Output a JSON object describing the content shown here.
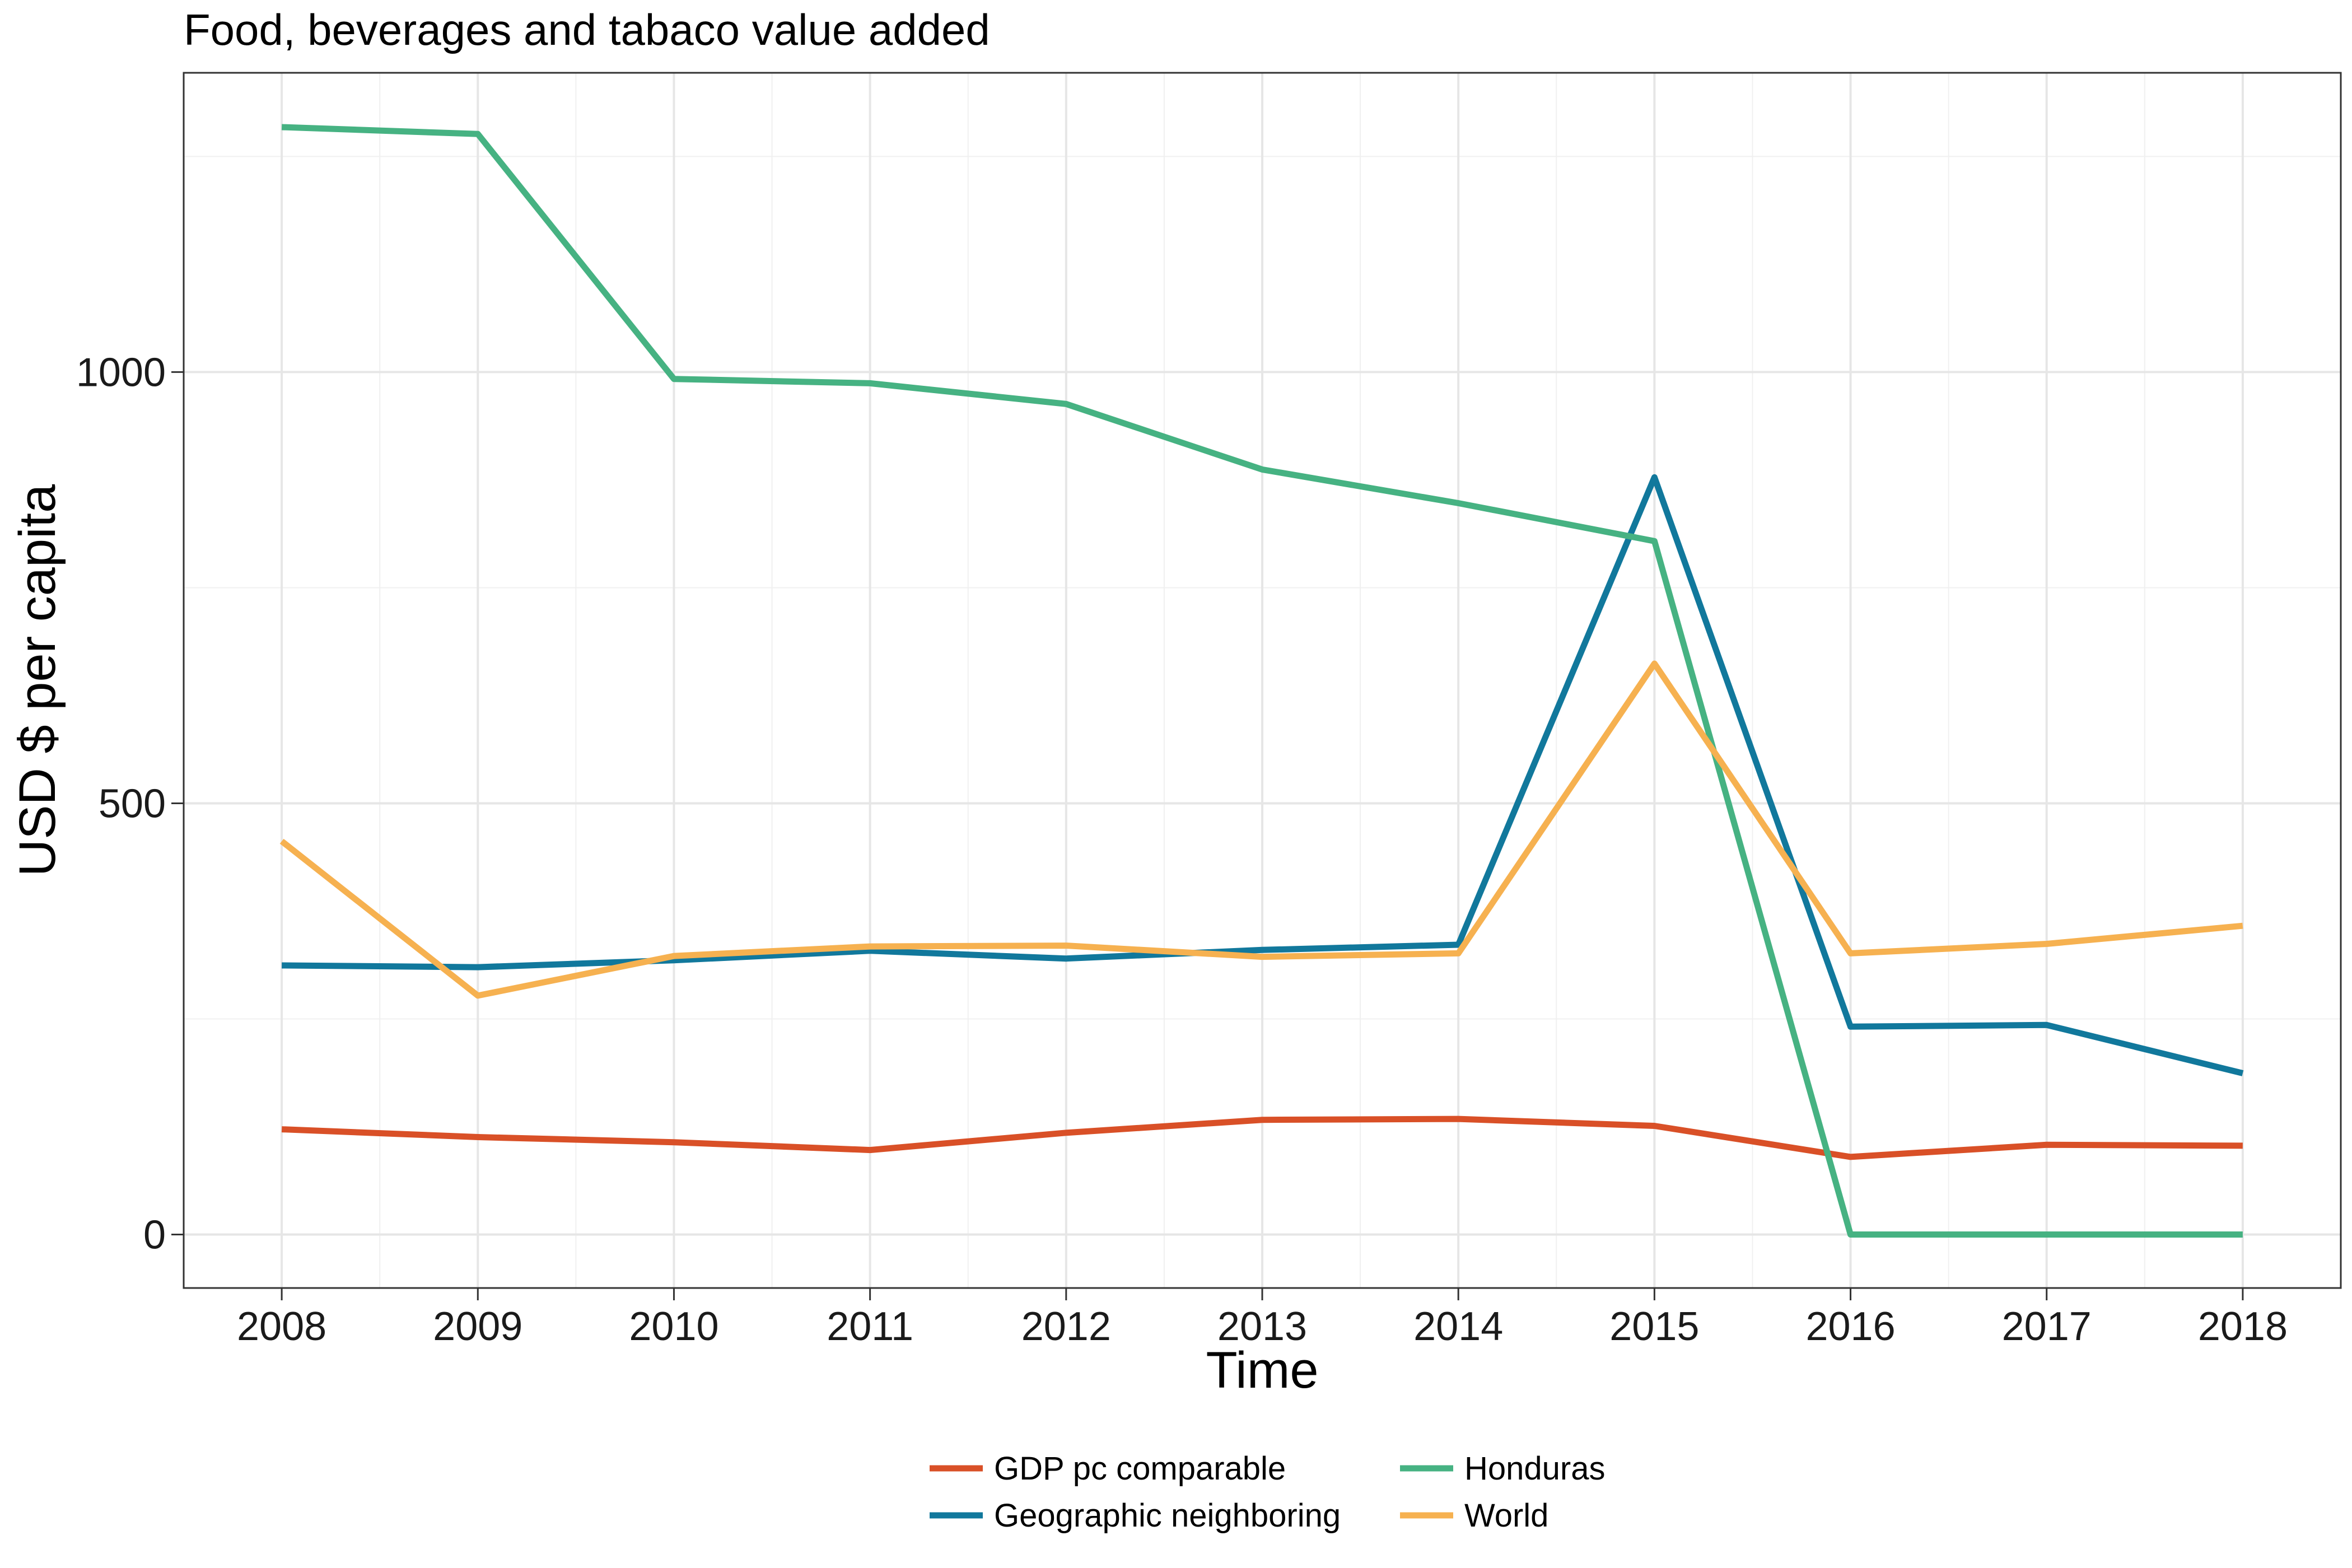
{
  "chart_data": {
    "type": "line",
    "title": "Food, beverages and tabaco value added",
    "xlabel": "Time",
    "ylabel": "USD $ per capita",
    "x": [
      2008,
      2009,
      2010,
      2011,
      2012,
      2013,
      2014,
      2015,
      2016,
      2017,
      2018
    ],
    "y_ticks": [
      0,
      500,
      1000
    ],
    "ylim": [
      -62,
      1347
    ],
    "xlim": [
      2007.5,
      2018.5
    ],
    "grid": true,
    "legend_position": "bottom",
    "series": [
      {
        "name": "GDP pc comparable",
        "color": "#D95027",
        "values": [
          122,
          113,
          107,
          98,
          118,
          133,
          134,
          126,
          90,
          104,
          103
        ]
      },
      {
        "name": "Geographic neighboring",
        "color": "#11789C",
        "values": [
          312,
          310,
          318,
          329,
          320,
          330,
          336,
          878,
          241,
          243,
          187
        ]
      },
      {
        "name": "Honduras",
        "color": "#46B282",
        "values": [
          1284,
          1276,
          992,
          987,
          963,
          887,
          848,
          804,
          0,
          0,
          0
        ]
      },
      {
        "name": "World",
        "color": "#F6B150",
        "values": [
          456,
          277,
          323,
          334,
          335,
          322,
          326,
          662,
          326,
          337,
          358
        ]
      }
    ]
  }
}
